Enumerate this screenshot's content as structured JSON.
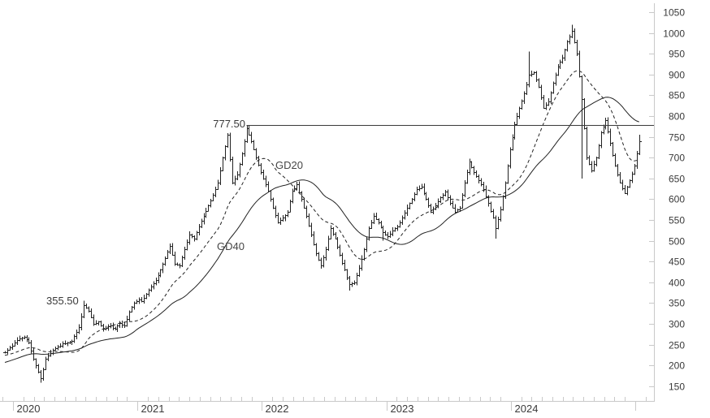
{
  "chart_data": {
    "type": "ohlc-bar",
    "title": "",
    "x_axis": {
      "year_labels": [
        "2020",
        "2021",
        "2022",
        "2023",
        "2024"
      ],
      "minor_ticks_per_year": 12
    },
    "y_axis": {
      "min": 150,
      "max": 1050,
      "tick_step": 50,
      "tick_labels": [
        "1050",
        "1000",
        "950",
        "900",
        "850",
        "800",
        "750",
        "700",
        "650",
        "600",
        "550",
        "500",
        "450",
        "400",
        "350",
        "300",
        "250",
        "200",
        "150"
      ]
    },
    "annotations": [
      {
        "label": "777.50",
        "value": 777.5
      },
      {
        "label": "355.50",
        "value": 355.5
      }
    ],
    "resistance_line": {
      "value": 777.5,
      "start_week": 101
    },
    "series": [
      {
        "name": "weekly-price-bars",
        "closes": [
          232,
          238,
          243,
          248,
          255,
          261,
          264,
          266,
          268,
          262,
          255,
          235,
          215,
          200,
          185,
          168,
          190,
          215,
          223,
          230,
          238,
          242,
          245,
          248,
          252,
          253,
          255,
          256,
          258,
          270,
          280,
          292,
          318,
          345,
          338,
          332,
          316,
          300,
          302,
          305,
          296,
          288,
          290,
          293,
          295,
          291,
          288,
          295,
          302,
          298,
          295,
          312,
          330,
          340,
          350,
          354,
          358,
          355,
          363,
          372,
          381,
          390,
          397,
          405,
          417,
          430,
          444,
          458,
          473,
          488,
          466,
          445,
          442,
          440,
          460,
          480,
          497,
          515,
          510,
          505,
          520,
          535,
          547,
          560,
          572,
          585,
          597,
          610,
          625,
          640,
          670,
          700,
          727,
          755,
          697,
          640,
          650,
          660,
          685,
          710,
          740,
          770,
          755,
          740,
          720,
          700,
          682,
          665,
          650,
          635,
          620,
          600,
          580,
          562,
          545,
          550,
          555,
          562,
          570,
          595,
          620,
          627,
          635,
          617,
          600,
          580,
          560,
          537,
          515,
          492,
          470,
          455,
          440,
          460,
          480,
          505,
          530,
          517,
          505,
          485,
          465,
          447,
          430,
          412,
          395,
          397,
          400,
          417,
          435,
          457,
          480,
          505,
          530,
          545,
          560,
          552,
          545,
          532,
          520,
          515,
          510,
          517,
          525,
          530,
          535,
          545,
          555,
          567,
          580,
          590,
          600,
          612,
          625,
          627,
          630,
          615,
          600,
          585,
          570,
          577,
          585,
          595,
          605,
          611,
          618,
          604,
          590,
          580,
          570,
          575,
          580,
          610,
          640,
          665,
          690,
          677,
          665,
          655,
          645,
          635,
          625,
          607,
          590,
          572,
          555,
          530,
          552,
          575,
          607,
          640,
          680,
          720,
          750,
          780,
          800,
          820,
          837,
          855,
          877,
          900,
          902,
          905,
          887,
          870,
          845,
          820,
          827,
          835,
          857,
          880,
          900,
          920,
          930,
          940,
          960,
          980,
          992,
          1005,
          977,
          950,
          895,
          840,
          770,
          700,
          685,
          670,
          685,
          700,
          730,
          760,
          775,
          790,
          762,
          735,
          707,
          680,
          660,
          640,
          627,
          615,
          630,
          645,
          662,
          680,
          710,
          740
        ]
      },
      {
        "name": "GD20",
        "type": "sma",
        "window": 20,
        "style": "dashed"
      },
      {
        "name": "GD40",
        "type": "sma",
        "window": 40,
        "style": "solid"
      }
    ],
    "ma_seed_closes": [
      165,
      168,
      170,
      173,
      175,
      178,
      180,
      183,
      185,
      188,
      190,
      192,
      194,
      196,
      198,
      200,
      202,
      204,
      206,
      208,
      210,
      212,
      214,
      216,
      218,
      220,
      221,
      222,
      223,
      224,
      225,
      226,
      226,
      227,
      227,
      228,
      228,
      229,
      230,
      231
    ],
    "spikes": [
      {
        "week": 15,
        "low": 158
      },
      {
        "week": 33,
        "high": 355.5
      },
      {
        "week": 101,
        "high": 777.5
      },
      {
        "week": 144,
        "low": 380
      },
      {
        "week": 158,
        "low": 500
      },
      {
        "week": 205,
        "low": 505
      },
      {
        "week": 219,
        "high": 955
      },
      {
        "week": 237,
        "high": 1020
      },
      {
        "week": 241,
        "low": 650
      },
      {
        "week": 265,
        "high": 755
      }
    ],
    "colors": {
      "bars": "#222222",
      "ma": "#222222",
      "axis": "#c9c9c9",
      "text": "#3a3a3a",
      "annotation": "#3a3a3a"
    }
  }
}
